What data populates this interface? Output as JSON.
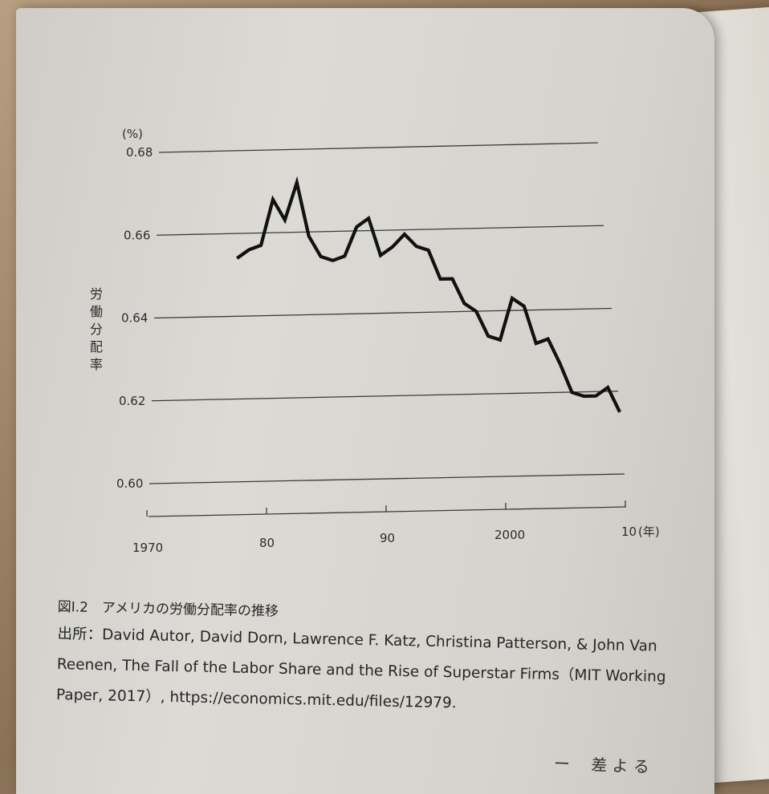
{
  "chart_data": {
    "type": "line",
    "unit_label": "(%)",
    "ylabel": "労働分配率",
    "x_unit": "(年)",
    "y_ticks": [
      "0.68",
      "0.66",
      "0.64",
      "0.62",
      "0.60"
    ],
    "x_ticks": [
      "1970",
      "80",
      "90",
      "2000",
      "10"
    ],
    "ylim": [
      0.6,
      0.68
    ],
    "grid": true,
    "series": [
      {
        "x": [
          1977,
          1978,
          1979,
          1980,
          1981,
          1982,
          1983,
          1984,
          1985,
          1986,
          1987,
          1988,
          1989,
          1990,
          1991,
          1992,
          1993,
          1994,
          1995,
          1996,
          1997,
          1998,
          1999,
          2000,
          2001,
          2002,
          2003,
          2004,
          2005,
          2006,
          2007,
          2008,
          2009
        ],
        "y": [
          0.654,
          0.656,
          0.657,
          0.668,
          0.663,
          0.672,
          0.659,
          0.654,
          0.653,
          0.654,
          0.661,
          0.663,
          0.654,
          0.656,
          0.659,
          0.656,
          0.655,
          0.648,
          0.648,
          0.642,
          0.64,
          0.634,
          0.633,
          0.643,
          0.641,
          0.632,
          0.633,
          0.627,
          0.62,
          0.619,
          0.619,
          0.621,
          0.615
        ]
      }
    ]
  },
  "caption": {
    "title": "図I.2　アメリカの労働分配率の推移",
    "source_line1": "出所：David Autor, David Dorn, Lawrence F. Katz, Christina Patterson, & John Van",
    "source_line2": "Reenen, The Fall of the Labor Share and the Rise of Superstar Firms（MIT Working",
    "source_line3": "Paper, 2017）, https://economics.mit.edu/files/12979."
  },
  "bottom_text": "ー　 差 よ る"
}
